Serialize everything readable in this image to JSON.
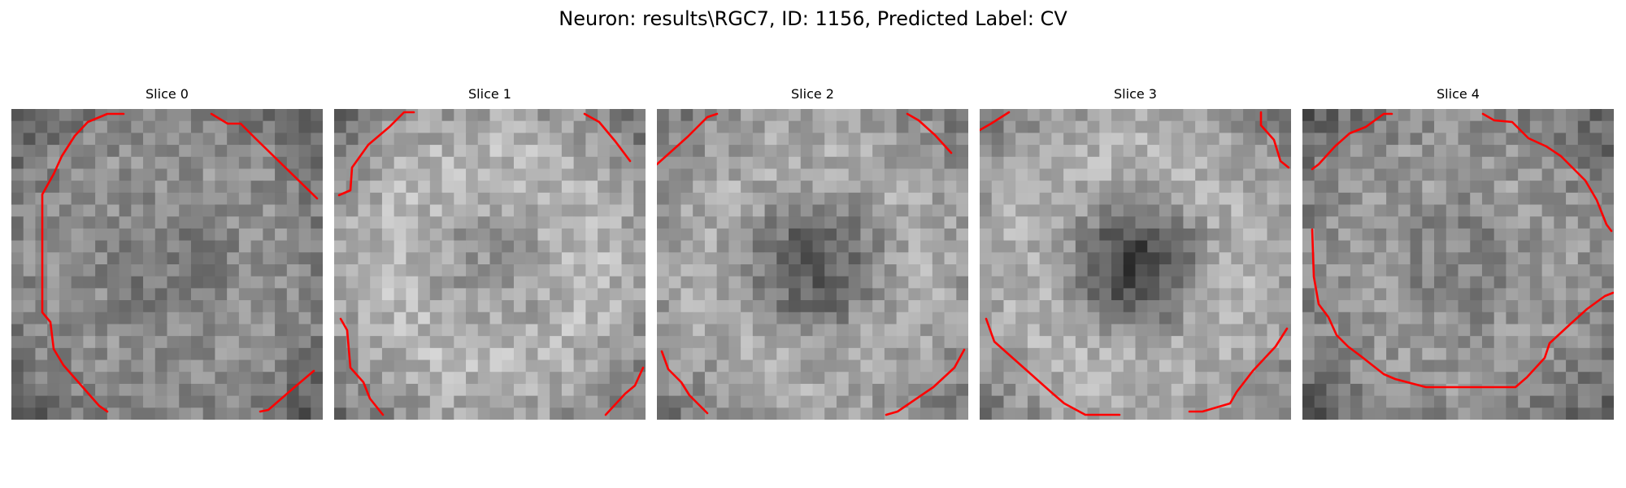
{
  "figure": {
    "title": "Neuron: results\\RGC7, ID: 1156, Predicted Label: CV"
  },
  "slices": [
    {
      "title": "Slice 0"
    },
    {
      "title": "Slice 1"
    },
    {
      "title": "Slice 2"
    },
    {
      "title": "Slice 3"
    },
    {
      "title": "Slice 4"
    }
  ],
  "colors": {
    "contour": "#ff0000",
    "background": "#ffffff"
  }
}
